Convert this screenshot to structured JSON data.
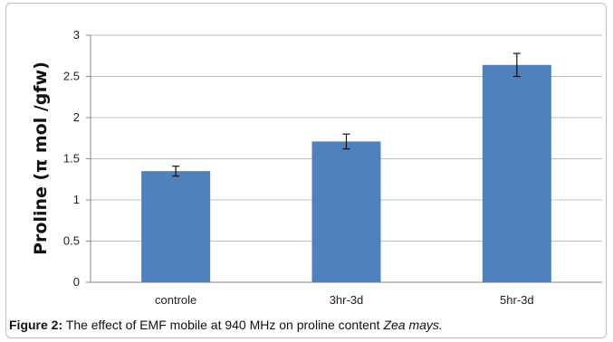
{
  "chart_data": {
    "type": "bar",
    "categories": [
      "controle",
      "3hr-3d",
      "5hr-3d"
    ],
    "values": [
      1.35,
      1.71,
      2.64
    ],
    "errors": [
      0.06,
      0.09,
      0.14
    ],
    "ylabel": "Proline (π mol  /gfw)",
    "xlabel": "",
    "ylim": [
      0,
      3
    ],
    "yticks": [
      "0",
      "0.5",
      "1",
      "1.5",
      "2",
      "2.5",
      "3"
    ],
    "grid": true,
    "legend": "none",
    "bar_color": "#4f81bd"
  },
  "caption": {
    "label": "Figure 2:",
    "text": " The effect of EMF mobile at 940 MHz on proline content ",
    "species": "Zea mays."
  }
}
